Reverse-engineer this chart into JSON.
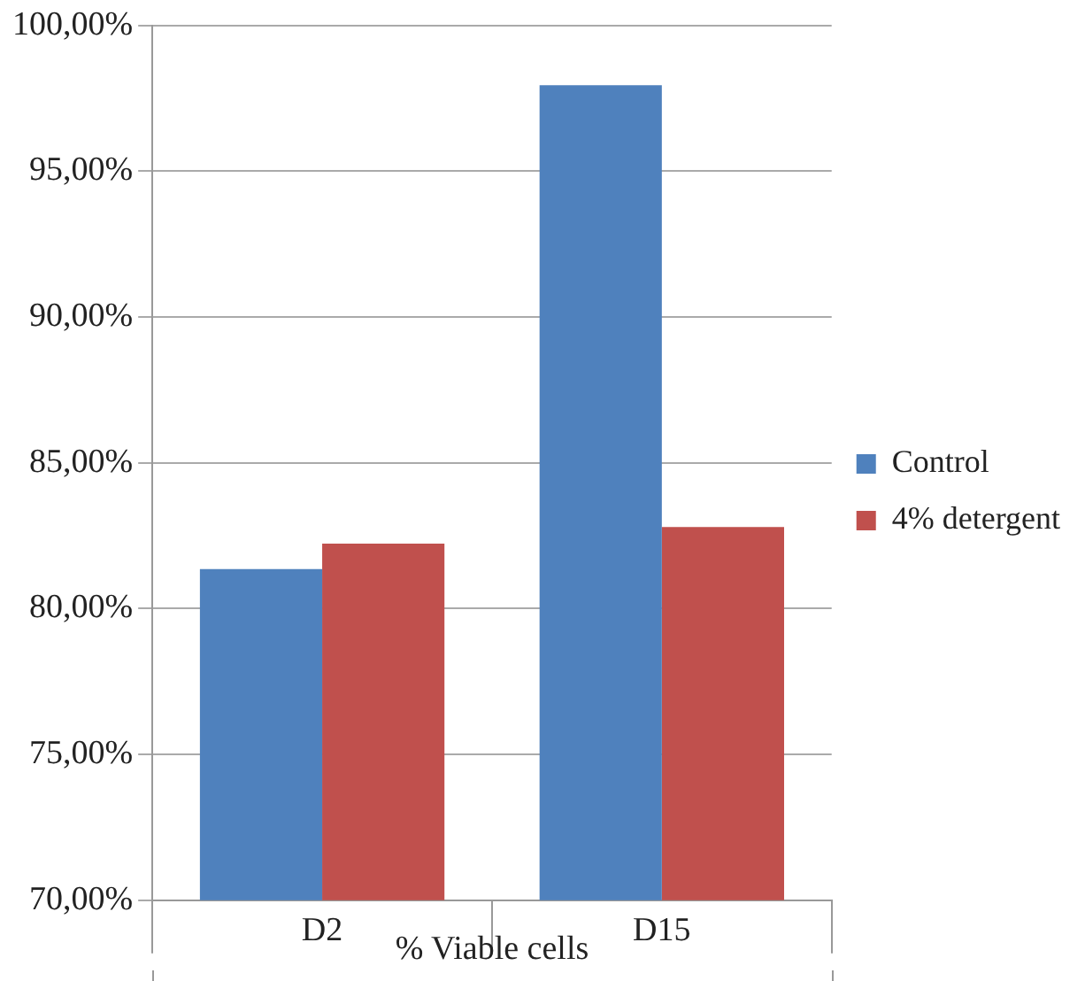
{
  "chart_data": {
    "type": "bar",
    "xlabel": "% Viable cells",
    "categories": [
      "D2",
      "D15"
    ],
    "series": [
      {
        "name": "Control",
        "color": "#4f81bd",
        "values": [
          81.36,
          97.95
        ]
      },
      {
        "name": "4% detergent",
        "color": "#c0504d",
        "values": [
          82.23,
          82.8
        ]
      }
    ],
    "ylim": [
      70,
      100
    ],
    "yticks": [
      {
        "value": 70,
        "label": "70,00%"
      },
      {
        "value": 75,
        "label": "75,00%"
      },
      {
        "value": 80,
        "label": "80,00%"
      },
      {
        "value": 85,
        "label": "85,00%"
      },
      {
        "value": 90,
        "label": "90,00%"
      },
      {
        "value": 95,
        "label": "95,00%"
      },
      {
        "value": 100,
        "label": "100,00%"
      }
    ],
    "grid": "y",
    "legend": "right"
  }
}
